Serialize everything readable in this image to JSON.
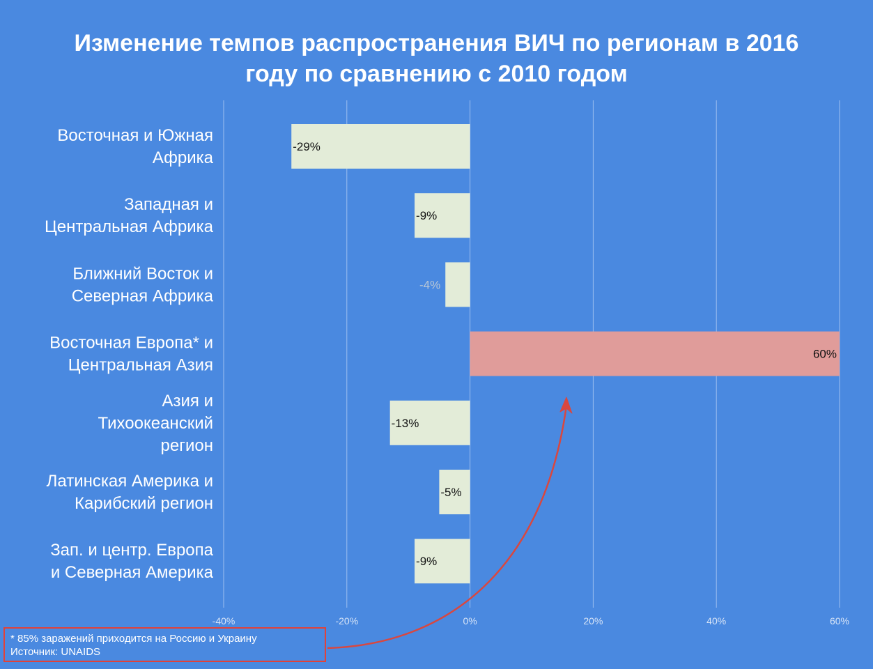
{
  "title": {
    "line1": "Изменение темпов распространения ВИЧ по регионам в 2016",
    "line2": "году по сравнению с 2010 годом"
  },
  "chart_data": {
    "type": "bar",
    "orientation": "horizontal",
    "categories": [
      [
        "Восточная и Южная",
        "Африка"
      ],
      [
        "Западная и",
        "Центральная Африка"
      ],
      [
        "Ближний Восток и",
        "Северная Африка"
      ],
      [
        "Восточная Европа* и",
        "Центральная Азия"
      ],
      [
        "Азия и",
        "Тихоокеанский",
        "регион"
      ],
      [
        "Латинская Америка и",
        "Карибский регион"
      ],
      [
        "Зап. и центр. Европа",
        "и Северная Америка"
      ]
    ],
    "values": [
      -29,
      -9,
      -4,
      60,
      -13,
      -5,
      -9
    ],
    "value_labels": [
      "-29%",
      "-9%",
      "-4%",
      "60%",
      "-13%",
      "-5%",
      "-9%"
    ],
    "xlim": [
      -40,
      60
    ],
    "ticks": [
      -40,
      -20,
      0,
      20,
      40,
      60
    ],
    "tick_labels": [
      "-40%",
      "-20%",
      "0%",
      "20%",
      "40%",
      "60%"
    ],
    "grid": true,
    "colors": {
      "background": "#4a89e0",
      "bar": "#e3ecd8",
      "highlight_bar": "#e09c9a",
      "grid": "#9dbff0",
      "label_dark": "#111111",
      "label_faint": "#b9c7d6",
      "arrow": "#d9473f"
    },
    "highlight_index": 3,
    "faint_label_index": 2
  },
  "footnote": {
    "line1": "* 85% заражений приходится на Россию и Украину",
    "line2": "Источник: UNAIDS"
  }
}
